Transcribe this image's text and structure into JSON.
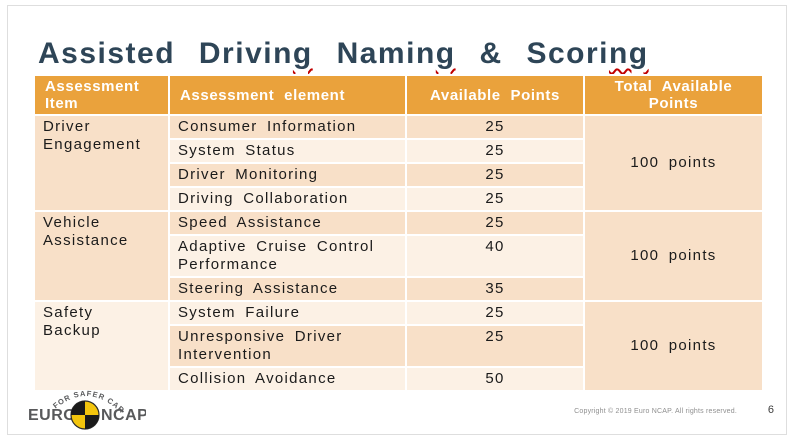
{
  "slide": {
    "title_segments": [
      {
        "text": "Assisted Drivin",
        "squiggle": false
      },
      {
        "text": "g",
        "squiggle": true
      },
      {
        "text": " Namin",
        "squiggle": false
      },
      {
        "text": "g",
        "squiggle": true
      },
      {
        "text": " & Scori",
        "squiggle": false
      },
      {
        "text": "ng",
        "squiggle": true
      }
    ],
    "title_plain": "Assisted Driving Naming & Scoring",
    "copyright": "Copyright © 2019 Euro NCAP. All rights reserved.",
    "page_number": "6"
  },
  "table": {
    "headers": [
      "Assessment Item",
      "Assessment element",
      "Available Points",
      "Total Available Points"
    ],
    "groups": [
      {
        "item": "Driver Engagement",
        "total": "100 points",
        "rows": [
          {
            "element": "Consumer Information",
            "points": "25"
          },
          {
            "element": "System Status",
            "points": "25"
          },
          {
            "element": "Driver Monitoring",
            "points": "25"
          },
          {
            "element": "Driving Collaboration",
            "points": "25"
          }
        ]
      },
      {
        "item": "Vehicle Assistance",
        "total": "100 points",
        "rows": [
          {
            "element": "Speed Assistance",
            "points": "25"
          },
          {
            "element": "Adaptive Cruise Control Performance",
            "points": "40"
          },
          {
            "element": "Steering Assistance",
            "points": "35"
          }
        ]
      },
      {
        "item": "Safety Backup",
        "total": "100 points",
        "rows": [
          {
            "element": "System Failure",
            "points": "25"
          },
          {
            "element": "Unresponsive Driver Intervention",
            "points": "25"
          },
          {
            "element": "Collision Avoidance",
            "points": "50"
          }
        ]
      }
    ]
  },
  "logo": {
    "arc_text": "FOR SAFER CARS",
    "left_text": "EURO",
    "right_text": "NCAP"
  },
  "colors": {
    "header_bg": "#EAA23C",
    "row_dark": "#F8E0C8",
    "row_light": "#FCF1E5",
    "title_color": "#2E4557",
    "accent_red": "#C00000",
    "logo_yellow": "#F3C50D",
    "logo_gray": "#58595B"
  }
}
